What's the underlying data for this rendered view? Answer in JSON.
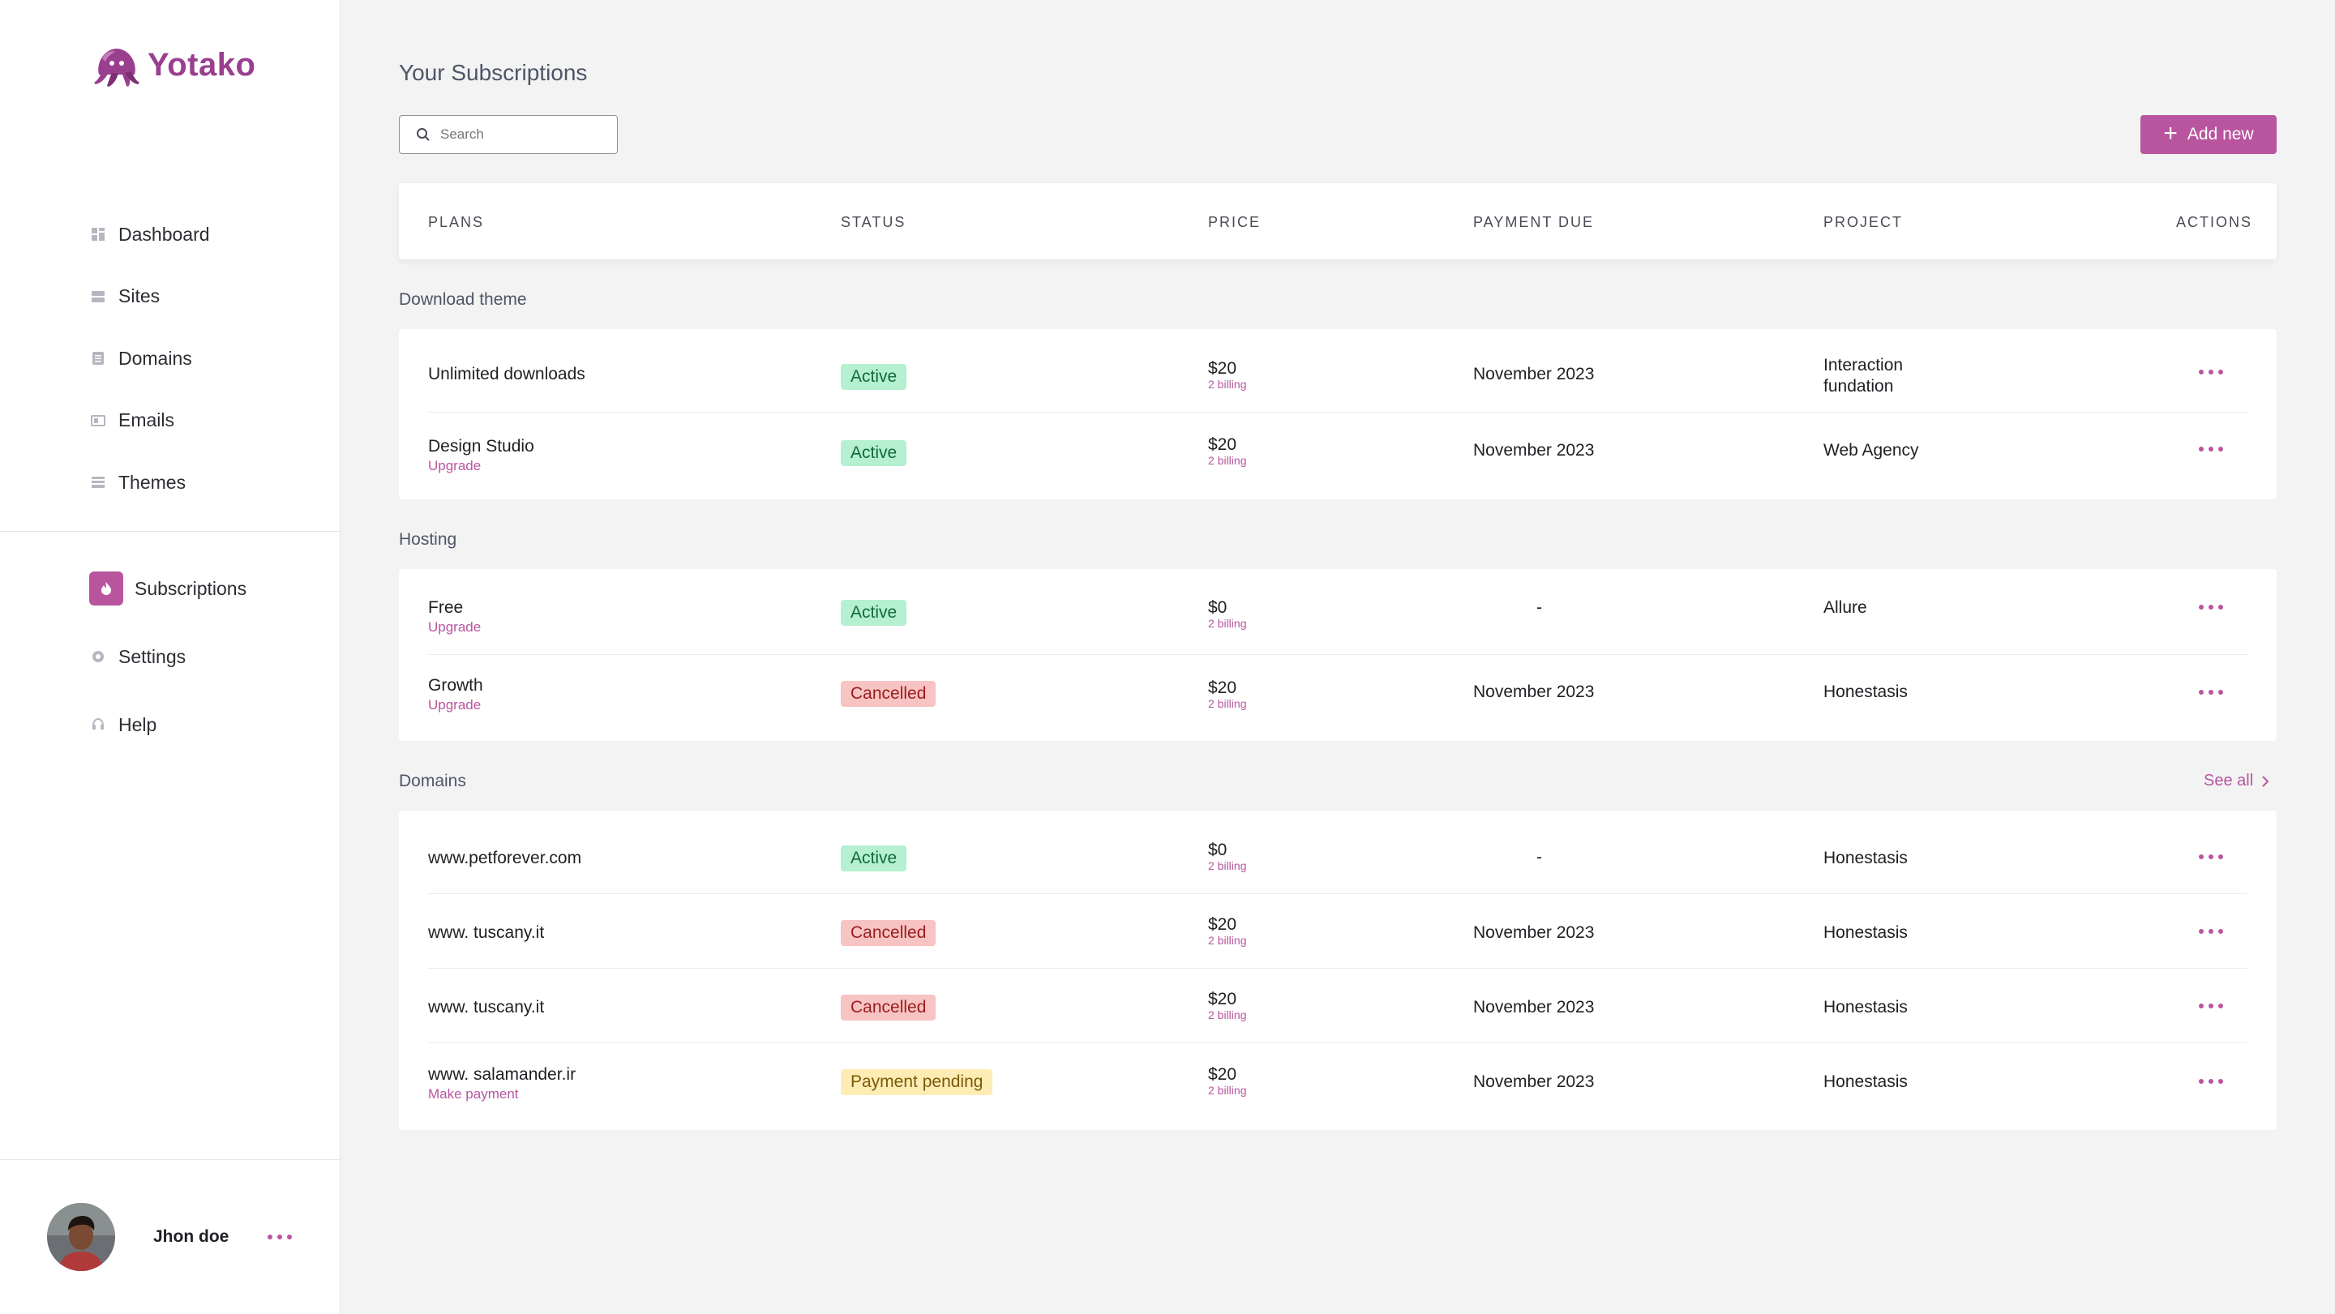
{
  "brand": {
    "name": "Yotako",
    "color": "#9a3f8f",
    "accent": "#b9559e"
  },
  "nav": [
    {
      "label": "Dashboard",
      "icon": "dashboard-icon"
    },
    {
      "label": "Sites",
      "icon": "sites-icon"
    },
    {
      "label": "Domains",
      "icon": "domains-icon"
    },
    {
      "label": "Emails",
      "icon": "emails-icon"
    },
    {
      "label": "Themes",
      "icon": "themes-icon"
    }
  ],
  "nav2": [
    {
      "label": "Subscriptions",
      "icon": "subscriptions-icon",
      "active": true
    },
    {
      "label": "Settings",
      "icon": "gear-icon"
    },
    {
      "label": "Help",
      "icon": "headset-icon"
    }
  ],
  "user": {
    "name": "Jhon doe"
  },
  "page": {
    "title": "Your Subscriptions"
  },
  "search": {
    "placeholder": "Search"
  },
  "add_button": {
    "label": "Add new"
  },
  "columns": [
    "PLANS",
    "STATUS",
    "PRICE",
    "PAYMENT DUE",
    "PROJECT",
    "ACTIONS"
  ],
  "see_all": "See all",
  "groups": [
    {
      "title": "Download theme",
      "rows": [
        {
          "plan": "Unlimited downloads",
          "link": "",
          "status": "Active",
          "status_type": "active",
          "price": "$20",
          "billing": "2 billing",
          "due": "November 2023",
          "project": [
            "Interaction",
            "fundation"
          ]
        },
        {
          "plan": "Design Studio",
          "link": "Upgrade",
          "status": "Active",
          "status_type": "active",
          "price": "$20",
          "billing": "2 billing",
          "due": "November 2023",
          "project": [
            "Web  Agency"
          ]
        }
      ]
    },
    {
      "title": "Hosting",
      "rows": [
        {
          "plan": "Free",
          "link": "Upgrade",
          "status": "Active",
          "status_type": "active",
          "price": "$0",
          "billing": "2 billing",
          "due": "-",
          "project": [
            "Allure"
          ]
        },
        {
          "plan": "Growth",
          "link": "Upgrade",
          "status": "Cancelled",
          "status_type": "cancelled",
          "price": "$20",
          "billing": "2 billing",
          "due": "November 2023",
          "project": [
            "Honestasis"
          ]
        }
      ]
    },
    {
      "title": "Domains",
      "rows": [
        {
          "plan": "www.petforever.com",
          "link": "",
          "status": "Active",
          "status_type": "active",
          "price": "$0",
          "billing": "2 billing",
          "due": "-",
          "project": [
            "Honestasis"
          ]
        },
        {
          "plan": "www. tuscany.it",
          "link": "",
          "status": "Cancelled",
          "status_type": "cancelled",
          "price": "$20",
          "billing": "2 billing",
          "due": "November 2023",
          "project": [
            "Honestasis"
          ]
        },
        {
          "plan": "www. tuscany.it",
          "link": "",
          "status": "Cancelled",
          "status_type": "cancelled",
          "price": "$20",
          "billing": "2 billing",
          "due": "November 2023",
          "project": [
            "Honestasis"
          ]
        },
        {
          "plan": "www. salamander.ir",
          "link": "Make payment",
          "status": "Payment pending",
          "status_type": "pending",
          "price": "$20",
          "billing": "2 billing",
          "due": "November 2023",
          "project": [
            "Honestasis"
          ]
        }
      ]
    }
  ]
}
